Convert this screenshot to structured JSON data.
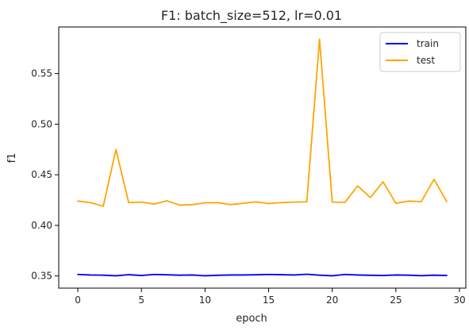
{
  "chart_data": {
    "type": "line",
    "title": "F1: batch_size=512, lr=0.01",
    "xlabel": "epoch",
    "ylabel": "f1",
    "xlim": [
      -1.5,
      30.5
    ],
    "ylim": [
      0.338,
      0.596
    ],
    "xticks": [
      0,
      5,
      10,
      15,
      20,
      25,
      30
    ],
    "yticks": [
      0.35,
      0.4,
      0.45,
      0.5,
      0.55
    ],
    "ytick_labels": [
      "0.35",
      "0.40",
      "0.45",
      "0.50",
      "0.55"
    ],
    "grid": false,
    "legend_position": "top-right",
    "x": [
      0,
      1,
      2,
      3,
      4,
      5,
      6,
      7,
      8,
      9,
      10,
      11,
      12,
      13,
      14,
      15,
      16,
      17,
      18,
      19,
      20,
      21,
      22,
      23,
      24,
      25,
      26,
      27,
      28,
      29
    ],
    "series": [
      {
        "name": "train",
        "color": "#0000ff",
        "values": [
          0.3515,
          0.351,
          0.3508,
          0.3502,
          0.3513,
          0.3505,
          0.3515,
          0.3512,
          0.3508,
          0.351,
          0.3502,
          0.3507,
          0.351,
          0.351,
          0.3512,
          0.3515,
          0.3513,
          0.351,
          0.3517,
          0.3508,
          0.3502,
          0.3515,
          0.351,
          0.3507,
          0.3505,
          0.351,
          0.3508,
          0.3503,
          0.3508,
          0.3505
        ]
      },
      {
        "name": "test",
        "color": "#ffa500",
        "values": [
          0.424,
          0.4225,
          0.419,
          0.475,
          0.4225,
          0.423,
          0.421,
          0.4243,
          0.42,
          0.4205,
          0.4223,
          0.4225,
          0.4205,
          0.4218,
          0.4233,
          0.4215,
          0.4225,
          0.423,
          0.4233,
          0.584,
          0.423,
          0.4228,
          0.439,
          0.4275,
          0.443,
          0.4218,
          0.424,
          0.4235,
          0.4455,
          0.4235
        ]
      }
    ]
  }
}
